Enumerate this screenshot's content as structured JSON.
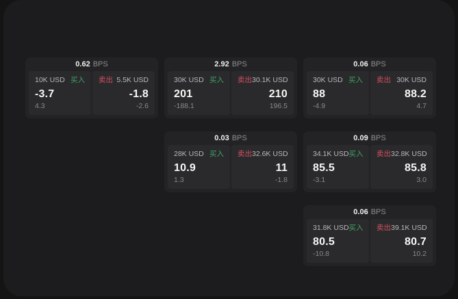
{
  "labels": {
    "bps": "BPS",
    "buy": "买入",
    "sell": "卖出"
  },
  "colors": {
    "background_outer": "#141414",
    "page_surface": "#1c1c1e",
    "card": "#232325",
    "panel": "#2a2a2c",
    "buy": "#3fa167",
    "sell": "#d04f61"
  },
  "cards": [
    {
      "bps": "0.62",
      "buy": {
        "amount": "10K USD",
        "price": "-3.7",
        "delta": "4.3"
      },
      "sell": {
        "amount": "5.5K USD",
        "price": "-1.8",
        "delta": "-2.6"
      }
    },
    {
      "bps": "2.92",
      "buy": {
        "amount": "30K USD",
        "price": "201",
        "delta": "-188.1"
      },
      "sell": {
        "amount": "30.1K USD",
        "price": "210",
        "delta": "196.5"
      }
    },
    {
      "bps": "0.06",
      "buy": {
        "amount": "30K USD",
        "price": "88",
        "delta": "-4.9"
      },
      "sell": {
        "amount": "30K USD",
        "price": "88.2",
        "delta": "4.7"
      }
    },
    {
      "bps": "0.03",
      "buy": {
        "amount": "28K USD",
        "price": "10.9",
        "delta": "1.3"
      },
      "sell": {
        "amount": "32.6K USD",
        "price": "11",
        "delta": "-1.8"
      }
    },
    {
      "bps": "0.09",
      "buy": {
        "amount": "34.1K USD",
        "price": "85.5",
        "delta": "-3.1"
      },
      "sell": {
        "amount": "32.8K USD",
        "price": "85.8",
        "delta": "3.0"
      }
    },
    {
      "bps": "0.06",
      "buy": {
        "amount": "31.8K USD",
        "price": "80.5",
        "delta": "-10.8"
      },
      "sell": {
        "amount": "39.1K USD",
        "price": "80.7",
        "delta": "10.2"
      }
    }
  ]
}
